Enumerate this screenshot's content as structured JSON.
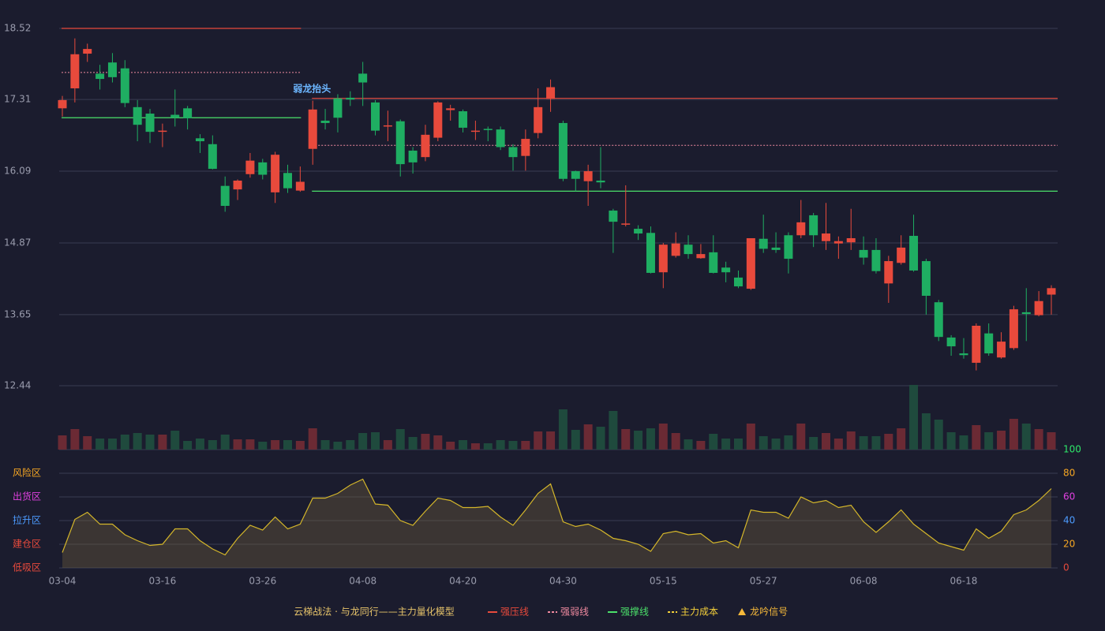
{
  "chart_data": {
    "type": "candlestick",
    "categories": [
      "03-04",
      null,
      null,
      null,
      null,
      null,
      null,
      null,
      "03-16",
      null,
      null,
      null,
      null,
      null,
      null,
      null,
      "03-26",
      null,
      null,
      null,
      null,
      null,
      null,
      null,
      "04-08",
      null,
      null,
      null,
      null,
      null,
      null,
      null,
      "04-20",
      null,
      null,
      null,
      null,
      null,
      null,
      null,
      "04-30",
      null,
      null,
      null,
      null,
      null,
      null,
      null,
      "05-15",
      null,
      null,
      null,
      null,
      null,
      null,
      null,
      "05-27",
      null,
      null,
      null,
      null,
      null,
      null,
      null,
      "06-08",
      null,
      null,
      null,
      null,
      null,
      null,
      null,
      "06-18",
      null,
      null,
      null,
      null,
      null,
      null,
      null
    ],
    "open": [
      17.16,
      17.5,
      18.09,
      17.75,
      17.94,
      17.84,
      17.18,
      17.07,
      16.76,
      17.05,
      17.16,
      16.65,
      16.55,
      15.84,
      15.78,
      16.04,
      16.24,
      15.73,
      16.06,
      15.76,
      16.47,
      16.95,
      17.33,
      17.34,
      17.75,
      17.26,
      16.85,
      16.94,
      16.44,
      16.33,
      16.66,
      17.13,
      17.11,
      16.76,
      16.81,
      16.8,
      16.5,
      16.35,
      16.74,
      17.32,
      16.91,
      16.09,
      15.92,
      15.93,
      15.42,
      15.18,
      15.11,
      15.04,
      14.37,
      14.65,
      14.84,
      14.61,
      14.71,
      14.45,
      14.28,
      14.09,
      14.94,
      14.79,
      15.0,
      15.0,
      15.34,
      14.9,
      14.86,
      14.88,
      14.75,
      14.75,
      14.18,
      14.53,
      14.99,
      14.56,
      13.86,
      13.26,
      12.99,
      12.83,
      13.33,
      12.92,
      13.08,
      13.69,
      13.64,
      13.99
    ],
    "high": [
      17.37,
      18.35,
      18.26,
      17.9,
      18.1,
      17.98,
      17.3,
      17.15,
      16.9,
      17.48,
      17.2,
      16.72,
      16.7,
      16.0,
      15.95,
      16.4,
      16.3,
      16.42,
      16.2,
      16.17,
      17.29,
      17.15,
      17.4,
      17.45,
      17.95,
      17.3,
      17.12,
      16.97,
      16.5,
      16.88,
      17.28,
      17.22,
      17.14,
      16.95,
      16.85,
      16.85,
      16.55,
      16.8,
      17.5,
      17.65,
      16.95,
      16.1,
      16.2,
      16.5,
      15.45,
      15.85,
      15.17,
      15.15,
      14.87,
      15.05,
      15.0,
      14.85,
      15.0,
      14.55,
      14.4,
      14.95,
      15.35,
      15.05,
      15.05,
      15.6,
      15.38,
      15.55,
      14.98,
      15.45,
      14.98,
      14.95,
      14.65,
      15.0,
      15.35,
      14.6,
      13.9,
      13.3,
      13.25,
      13.5,
      13.5,
      13.35,
      13.8,
      14.1,
      14.05,
      14.15
    ],
    "low": [
      17.02,
      17.26,
      17.95,
      17.48,
      17.6,
      17.18,
      16.6,
      16.57,
      16.5,
      16.85,
      16.8,
      16.4,
      16.12,
      15.4,
      15.6,
      15.98,
      15.95,
      15.55,
      15.72,
      15.74,
      16.2,
      16.8,
      16.75,
      17.2,
      17.2,
      16.7,
      16.6,
      16.0,
      16.05,
      16.26,
      16.6,
      16.95,
      16.75,
      16.62,
      16.6,
      16.45,
      16.1,
      16.1,
      16.65,
      17.1,
      15.92,
      15.75,
      15.5,
      15.8,
      14.7,
      15.15,
      14.92,
      14.35,
      14.1,
      14.62,
      14.6,
      14.6,
      14.35,
      14.2,
      14.1,
      14.07,
      14.7,
      14.7,
      14.35,
      14.95,
      14.8,
      14.75,
      14.6,
      14.75,
      14.5,
      14.35,
      13.85,
      14.5,
      14.38,
      13.65,
      13.2,
      12.95,
      12.9,
      12.7,
      12.95,
      12.9,
      13.05,
      13.2,
      13.62,
      13.65
    ],
    "close": [
      17.3,
      18.08,
      18.17,
      17.66,
      17.69,
      17.25,
      16.88,
      16.76,
      16.78,
      17.0,
      16.99,
      16.6,
      16.13,
      15.5,
      15.93,
      16.27,
      16.03,
      16.37,
      15.8,
      15.91,
      17.14,
      16.91,
      17.0,
      17.31,
      17.6,
      16.78,
      16.87,
      16.21,
      16.24,
      16.71,
      17.26,
      17.16,
      16.83,
      16.78,
      16.79,
      16.5,
      16.33,
      16.64,
      17.18,
      17.52,
      15.96,
      15.96,
      16.09,
      15.9,
      15.23,
      15.2,
      15.03,
      14.36,
      14.84,
      14.86,
      14.68,
      14.68,
      14.36,
      14.37,
      14.13,
      14.95,
      14.77,
      14.75,
      14.6,
      15.22,
      15.0,
      15.03,
      14.9,
      14.95,
      14.62,
      14.39,
      14.56,
      14.79,
      14.4,
      13.97,
      13.27,
      13.11,
      12.96,
      13.46,
      12.99,
      13.19,
      13.74,
      13.66,
      13.88,
      14.1
    ],
    "volume": [
      18,
      26,
      17,
      14,
      14,
      19,
      21,
      19,
      19,
      24,
      11,
      14,
      12,
      19,
      13,
      13,
      10,
      12,
      12,
      11,
      27,
      12,
      10,
      12,
      21,
      22,
      12,
      26,
      16,
      20,
      18,
      10,
      12,
      8,
      8,
      12,
      11,
      11,
      23,
      23,
      51,
      25,
      32,
      29,
      49,
      26,
      24,
      27,
      33,
      21,
      13,
      11,
      20,
      14,
      14,
      33,
      17,
      14,
      18,
      33,
      16,
      21,
      14,
      23,
      17,
      17,
      20,
      27,
      82,
      46,
      38,
      22,
      18,
      31,
      22,
      24,
      39,
      33,
      26,
      22
    ],
    "oscillator": [
      13,
      41,
      47,
      37,
      37,
      28,
      23,
      19,
      20,
      33,
      33,
      23,
      16,
      11,
      25,
      36,
      32,
      43,
      33,
      37,
      59,
      59,
      63,
      70,
      75,
      54,
      53,
      40,
      36,
      48,
      59,
      57,
      51,
      51,
      52,
      43,
      36,
      49,
      63,
      71,
      39,
      35,
      37,
      32,
      25,
      23,
      20,
      14,
      29,
      31,
      28,
      29,
      21,
      23,
      17,
      49,
      47,
      47,
      42,
      60,
      55,
      57,
      51,
      53,
      39,
      30,
      39,
      49,
      37,
      29,
      21,
      18,
      15,
      33,
      25,
      31,
      45,
      49,
      57,
      67
    ],
    "ylim": [
      12.44,
      18.52
    ],
    "yticks": [
      18.52,
      17.31,
      16.09,
      14.87,
      13.65,
      12.44
    ],
    "osc_ylim": [
      0,
      100
    ],
    "osc_yticks": [
      0,
      20,
      40,
      60,
      80,
      100
    ],
    "osc_ytick_colors": [
      "#e84a3c",
      "#f5a623",
      "#4c9bff",
      "#e040e0",
      "#f5a623",
      "#2ee86a"
    ],
    "zones": [
      {
        "label": "风险区",
        "value": 80,
        "color": "#f5a623"
      },
      {
        "label": "出货区",
        "value": 60,
        "color": "#e040e0"
      },
      {
        "label": "拉升区",
        "value": 40,
        "color": "#4c9bff"
      },
      {
        "label": "建仓区",
        "value": 20,
        "color": "#e84a3c"
      },
      {
        "label": "低吸区",
        "value": 0,
        "color": "#e84a3c"
      }
    ],
    "segments": [
      {
        "start": 0,
        "end": 19,
        "resistance": 18.52,
        "pivot": 17.77,
        "support": 17.0
      },
      {
        "start": 20,
        "end": 79,
        "resistance": 17.33,
        "pivot": 16.53,
        "support": 15.75
      }
    ],
    "annotation": {
      "text": "弱龙抬头",
      "index": 20
    },
    "up_color": "#e84a3c",
    "down_color": "#1fae62",
    "legend_title": "云梯战法 · 与龙同行——主力量化模型",
    "legend": [
      {
        "name": "强压线",
        "color": "#e84a3c",
        "style": "solid"
      },
      {
        "name": "强弱线",
        "color": "#f08aa0",
        "style": "dashed"
      },
      {
        "name": "强撑线",
        "color": "#4be06a",
        "style": "solid"
      },
      {
        "name": "主力成本",
        "color": "#f5d03a",
        "style": "dashed"
      },
      {
        "name": "龙吟信号",
        "color": "#f5b83a",
        "style": "triangle"
      }
    ]
  }
}
